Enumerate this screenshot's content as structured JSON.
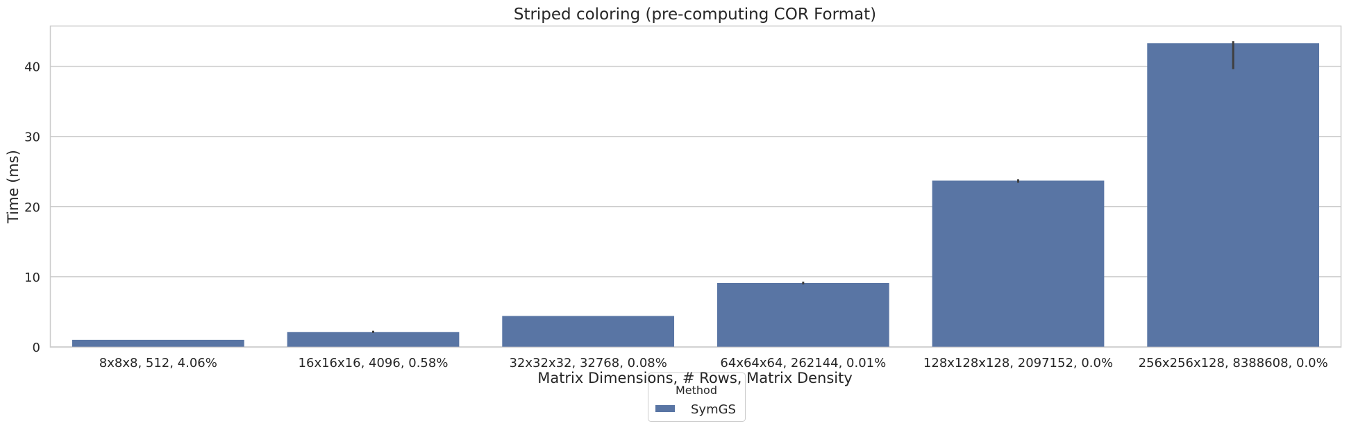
{
  "chart_data": {
    "type": "bar",
    "title": "Striped coloring (pre-computing COR Format)",
    "xlabel": "Matrix Dimensions, # Rows, Matrix Density",
    "ylabel": "Time (ms)",
    "categories": [
      "8x8x8, 512, 4.06%",
      "16x16x16, 4096, 0.58%",
      "32x32x32, 32768, 0.08%",
      "64x64x64, 262144, 0.01%",
      "128x128x128, 2097152, 0.0%",
      "256x256x128, 8388608, 0.0%"
    ],
    "series": [
      {
        "name": "SymGS",
        "values": [
          1.0,
          2.1,
          4.4,
          9.1,
          23.7,
          43.3
        ],
        "error_low": [
          1.0,
          2.0,
          4.4,
          8.9,
          23.4,
          39.6
        ],
        "error_high": [
          1.0,
          2.3,
          4.4,
          9.3,
          23.9,
          43.6
        ],
        "color": "#5975a4"
      }
    ],
    "yticks": [
      0,
      10,
      20,
      30,
      40
    ],
    "ylim": [
      0,
      45.7
    ],
    "grid": true,
    "legend": {
      "title": "Method",
      "placement": "bottom-center"
    }
  }
}
